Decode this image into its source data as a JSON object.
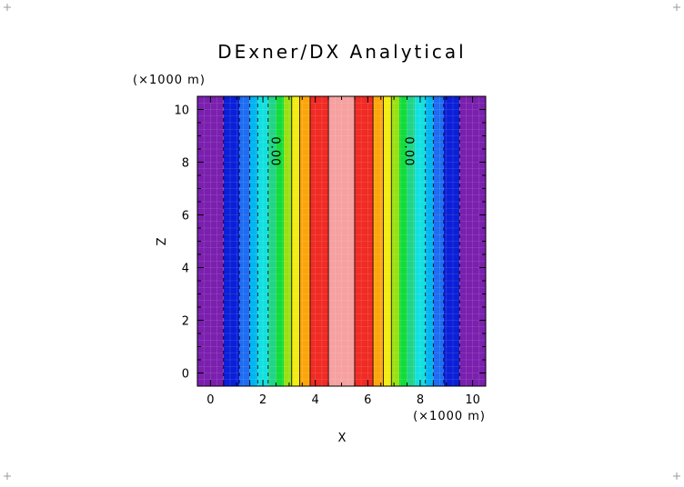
{
  "chart_data": {
    "type": "heatmap",
    "title": "DExner/DX Analytical",
    "xlabel": "X",
    "ylabel": "Z",
    "x_units": "(×1000 m)",
    "y_units": "(×1000 m)",
    "xlim": [
      -0.5,
      10.5
    ],
    "ylim": [
      -0.5,
      10.5
    ],
    "x_ticks": [
      "0",
      "2",
      "4",
      "6",
      "8",
      "10"
    ],
    "y_ticks": [
      "0",
      "2",
      "4",
      "6",
      "8",
      "10"
    ],
    "x_tick_values": [
      0,
      2,
      4,
      6,
      8,
      10
    ],
    "y_tick_values": [
      0,
      2,
      4,
      6,
      8,
      10
    ],
    "grid": true,
    "bands": [
      {
        "x0": -0.5,
        "x1": 0.5,
        "color": "#7a1fae"
      },
      {
        "x0": 0.5,
        "x1": 1.1,
        "color": "#0a1fd8"
      },
      {
        "x0": 1.1,
        "x1": 1.5,
        "color": "#1d6cf2"
      },
      {
        "x0": 1.5,
        "x1": 1.8,
        "color": "#00b5f0"
      },
      {
        "x0": 1.8,
        "x1": 2.2,
        "color": "#12e0e0"
      },
      {
        "x0": 2.2,
        "x1": 2.5,
        "color": "#21d488"
      },
      {
        "x0": 2.5,
        "x1": 2.8,
        "color": "#12dc3a"
      },
      {
        "x0": 2.8,
        "x1": 3.1,
        "color": "#9ae011"
      },
      {
        "x0": 3.1,
        "x1": 3.4,
        "color": "#f2ec10"
      },
      {
        "x0": 3.4,
        "x1": 3.8,
        "color": "#fca50b"
      },
      {
        "x0": 3.8,
        "x1": 4.5,
        "color": "#f12a24"
      },
      {
        "x0": 4.5,
        "x1": 5.5,
        "color": "#f6a0a0"
      },
      {
        "x0": 5.5,
        "x1": 6.2,
        "color": "#f12a24"
      },
      {
        "x0": 6.2,
        "x1": 6.6,
        "color": "#fca50b"
      },
      {
        "x0": 6.6,
        "x1": 6.9,
        "color": "#f2ec10"
      },
      {
        "x0": 6.9,
        "x1": 7.2,
        "color": "#9ae011"
      },
      {
        "x0": 7.2,
        "x1": 7.5,
        "color": "#12dc3a"
      },
      {
        "x0": 7.5,
        "x1": 7.8,
        "color": "#21d488"
      },
      {
        "x0": 7.8,
        "x1": 8.2,
        "color": "#12e0e0"
      },
      {
        "x0": 8.2,
        "x1": 8.5,
        "color": "#00b5f0"
      },
      {
        "x0": 8.5,
        "x1": 8.9,
        "color": "#1d6cf2"
      },
      {
        "x0": 8.9,
        "x1": 9.5,
        "color": "#0a1fd8"
      },
      {
        "x0": 9.5,
        "x1": 10.5,
        "color": "#7a1fae"
      }
    ],
    "contour_lines_solid": [
      3.1,
      3.4,
      3.8,
      4.5,
      5.5,
      6.2,
      6.6,
      6.9
    ],
    "contour_lines_dashed": [
      0.5,
      1.1,
      1.5,
      1.8,
      2.2,
      8.2,
      8.5,
      8.9,
      9.5
    ],
    "contour_labels": [
      {
        "text": "0.00",
        "x": 2.45,
        "y": 8.4
      },
      {
        "text": "0.00",
        "x": 7.55,
        "y": 8.4
      }
    ]
  }
}
